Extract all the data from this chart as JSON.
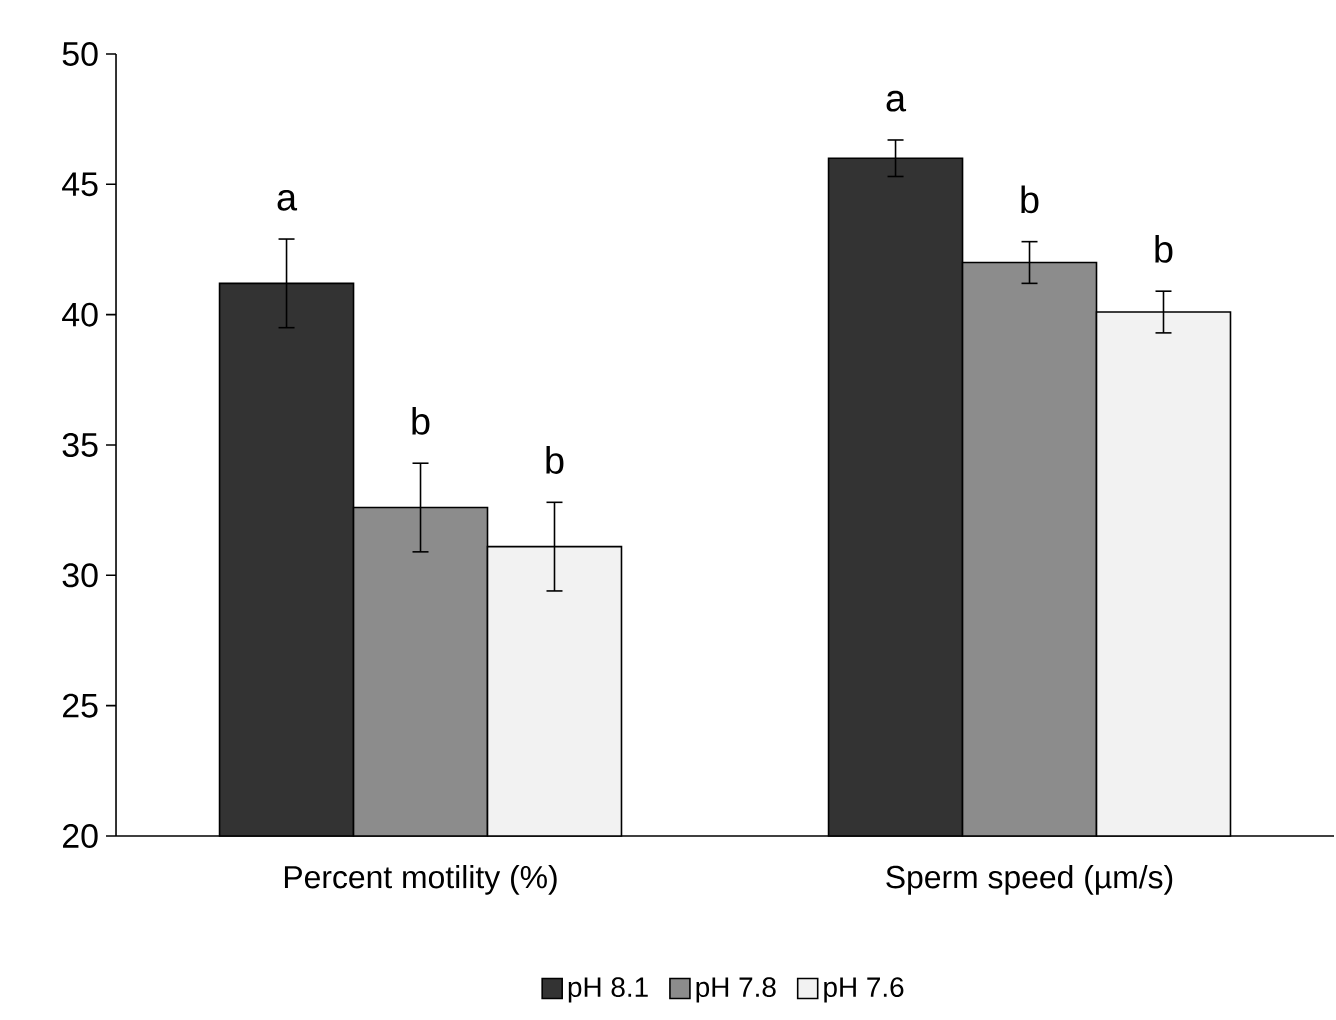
{
  "chart_data": {
    "type": "bar",
    "categories": [
      "Percent motility (%)",
      "Sperm speed (µm/s)"
    ],
    "series": [
      {
        "name": "pH 8.1",
        "color": "#333333",
        "values": [
          41.2,
          46.0
        ],
        "errors": [
          1.7,
          0.7
        ]
      },
      {
        "name": "pH 7.8",
        "color": "#8c8c8c",
        "values": [
          32.6,
          42.0
        ],
        "errors": [
          1.7,
          0.8
        ]
      },
      {
        "name": "pH 7.6",
        "color": "#f2f2f2",
        "values": [
          31.1,
          40.1
        ],
        "errors": [
          1.7,
          0.8
        ]
      }
    ],
    "ylim": [
      20,
      50
    ],
    "yticks": [
      20,
      25,
      30,
      35,
      40,
      45,
      50
    ],
    "annotations": [
      "a",
      "b",
      "b",
      "a",
      "b",
      "b"
    ],
    "grid": false,
    "legend": "bottom"
  }
}
